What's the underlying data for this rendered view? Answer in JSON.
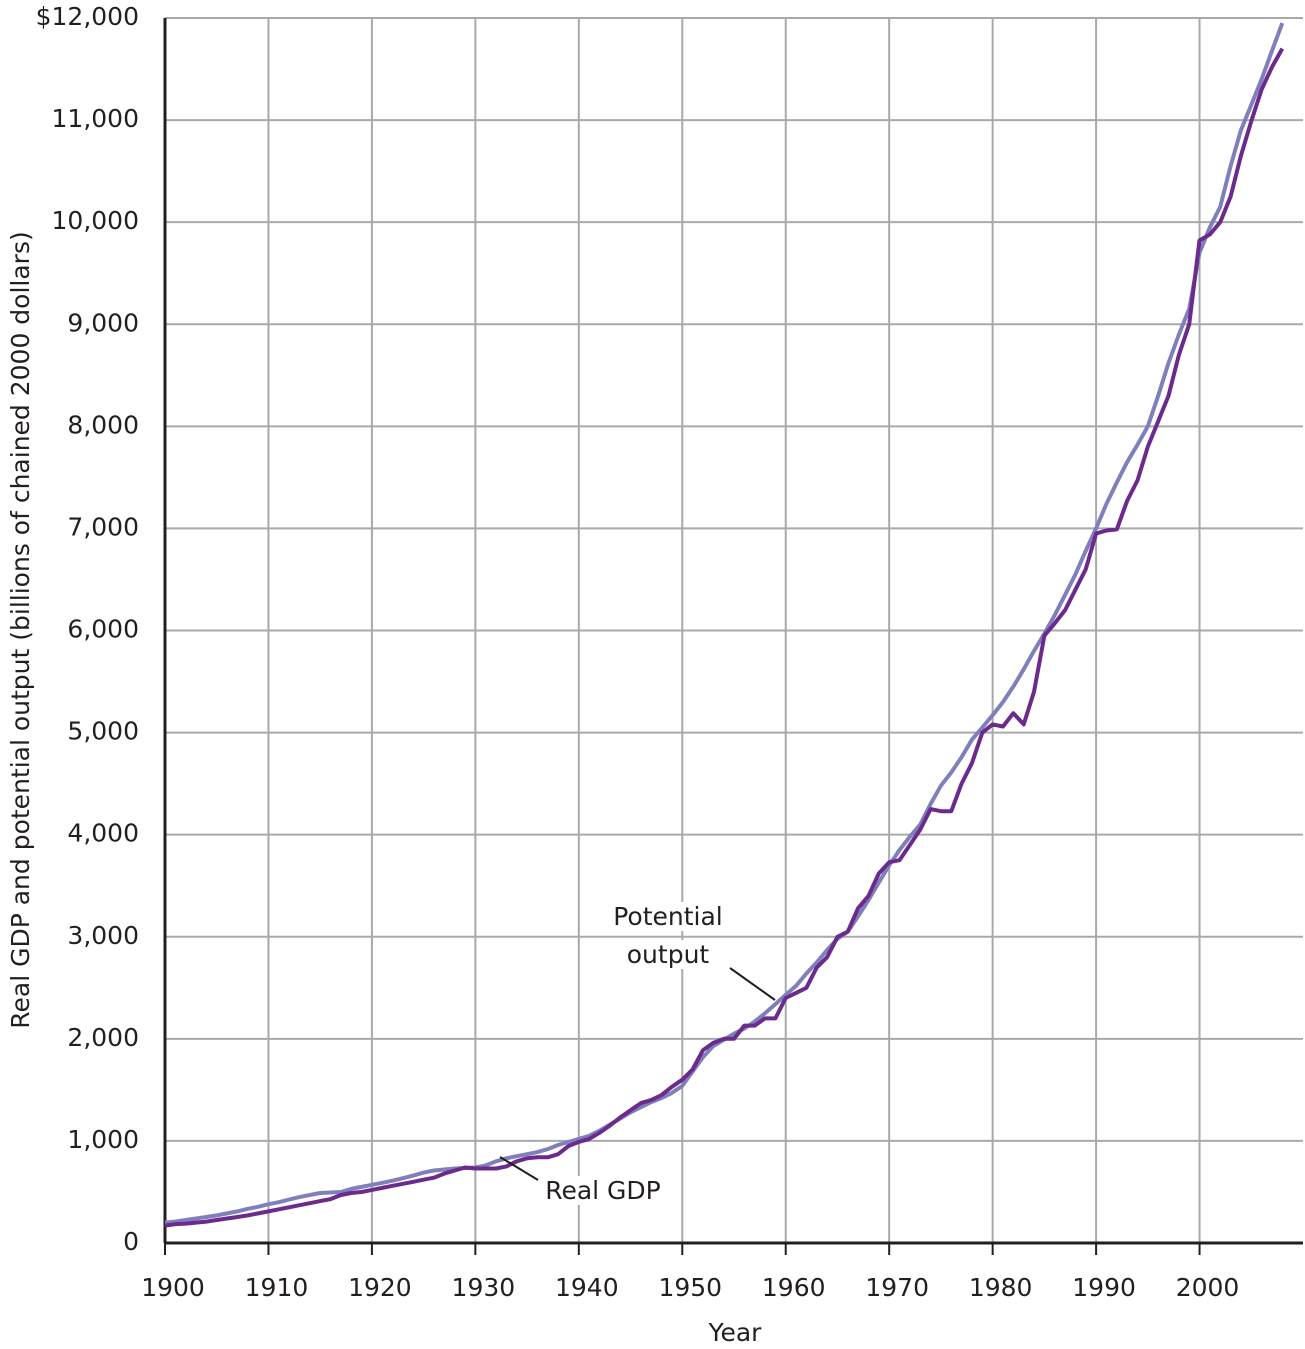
{
  "chart_data": {
    "type": "line",
    "x_label": "Year",
    "y_label": "Real GDP and potential output (billions of chained 2000 dollars)",
    "x": [
      1900,
      1901,
      1902,
      1903,
      1904,
      1905,
      1906,
      1907,
      1908,
      1909,
      1910,
      1911,
      1912,
      1913,
      1914,
      1915,
      1916,
      1917,
      1918,
      1919,
      1920,
      1921,
      1922,
      1923,
      1924,
      1925,
      1926,
      1927,
      1928,
      1929,
      1930,
      1931,
      1932,
      1933,
      1934,
      1935,
      1936,
      1937,
      1938,
      1939,
      1940,
      1941,
      1942,
      1943,
      1944,
      1945,
      1946,
      1947,
      1948,
      1949,
      1950,
      1951,
      1952,
      1953,
      1954,
      1955,
      1956,
      1957,
      1958,
      1959,
      1960,
      1961,
      1962,
      1963,
      1964,
      1965,
      1966,
      1967,
      1968,
      1969,
      1970,
      1971,
      1972,
      1973,
      1974,
      1975,
      1976,
      1977,
      1978,
      1979,
      1980,
      1981,
      1982,
      1983,
      1984,
      1985,
      1986,
      1987,
      1988,
      1989,
      1990,
      1991,
      1992,
      1993,
      1994,
      1995,
      1996,
      1997,
      1998,
      1999,
      2000,
      2001,
      2002,
      2003,
      2004,
      2005,
      2006,
      2007,
      2008
    ],
    "series": [
      {
        "name": "Potential output",
        "color": "#7f80bb",
        "values": [
          200,
          210,
          225,
          240,
          255,
          270,
          290,
          310,
          335,
          355,
          380,
          400,
          425,
          450,
          470,
          490,
          495,
          500,
          530,
          550,
          570,
          590,
          610,
          635,
          660,
          690,
          710,
          720,
          730,
          735,
          740,
          760,
          800,
          830,
          850,
          870,
          890,
          920,
          960,
          990,
          1020,
          1050,
          1100,
          1160,
          1220,
          1280,
          1330,
          1380,
          1420,
          1470,
          1540,
          1680,
          1820,
          1930,
          1990,
          2050,
          2100,
          2170,
          2250,
          2340,
          2430,
          2520,
          2640,
          2750,
          2870,
          2980,
          3050,
          3200,
          3360,
          3530,
          3700,
          3850,
          3980,
          4100,
          4300,
          4480,
          4610,
          4760,
          4930,
          5050,
          5170,
          5300,
          5450,
          5620,
          5800,
          5970,
          6150,
          6350,
          6550,
          6780,
          7000,
          7240,
          7450,
          7650,
          7820,
          8000,
          8300,
          8620,
          8900,
          9150,
          9700,
          9950,
          10150,
          10550,
          10900,
          11150,
          11400,
          11680,
          11950
        ]
      },
      {
        "name": "Real GDP",
        "color": "#6b2a8c",
        "values": [
          170,
          185,
          190,
          200,
          210,
          225,
          240,
          255,
          270,
          290,
          310,
          330,
          350,
          370,
          390,
          410,
          430,
          470,
          490,
          500,
          520,
          540,
          560,
          580,
          600,
          620,
          640,
          680,
          710,
          740,
          730,
          730,
          730,
          750,
          800,
          830,
          840,
          840,
          870,
          950,
          990,
          1020,
          1080,
          1150,
          1230,
          1300,
          1370,
          1400,
          1450,
          1530,
          1600,
          1700,
          1890,
          1960,
          2000,
          2000,
          2130,
          2130,
          2200,
          2200,
          2400,
          2450,
          2500,
          2700,
          2800,
          3000,
          3050,
          3280,
          3400,
          3620,
          3730,
          3750,
          3900,
          4050,
          4250,
          4230,
          4230,
          4500,
          4700,
          5000,
          5080,
          5060,
          5190,
          5080,
          5400,
          5950,
          6070,
          6200,
          6400,
          6600,
          6950,
          6980,
          6990,
          7270,
          7470,
          7800,
          8050,
          8300,
          8700,
          9000,
          9820,
          9880,
          10000,
          10250,
          10650,
          10990,
          11300,
          11520,
          11700
        ]
      }
    ],
    "annotations": [
      {
        "text": [
          "Potential",
          "output"
        ]
      },
      {
        "text": [
          "Real GDP"
        ]
      }
    ],
    "xlim": [
      1900,
      2010
    ],
    "xticks": [
      1900,
      1910,
      1920,
      1930,
      1940,
      1950,
      1960,
      1970,
      1980,
      1990,
      2000
    ],
    "ylim": [
      0,
      12000
    ],
    "yticks": [
      0,
      {
        "value": 1000,
        "label": "1,000"
      },
      {
        "value": 2000,
        "label": "2,000"
      },
      {
        "value": 3000,
        "label": "3,000"
      },
      {
        "value": 4000,
        "label": "4,000"
      },
      {
        "value": 5000,
        "label": "5,000"
      },
      {
        "value": 6000,
        "label": "6,000"
      },
      {
        "value": 7000,
        "label": "7,000"
      },
      {
        "value": 8000,
        "label": "8,000"
      },
      {
        "value": 9000,
        "label": "9,000"
      },
      {
        "value": 10000,
        "label": "10,000"
      },
      {
        "value": 11000,
        "label": "11,000"
      },
      {
        "value": 12000,
        "label": "$12,000"
      }
    ],
    "grid": true
  }
}
